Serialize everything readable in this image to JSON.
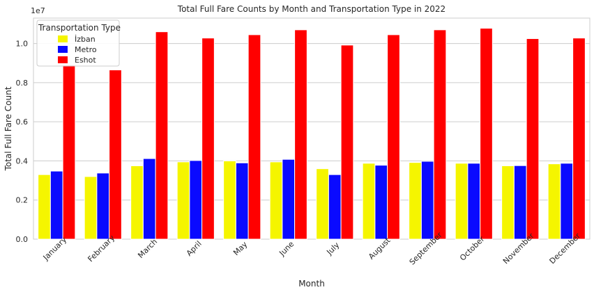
{
  "chart_data": {
    "type": "bar",
    "title": "Total Full Fare Counts by Month and Transportation Type in 2022",
    "xlabel": "Month",
    "ylabel": "Total Full Fare Count",
    "y_offset_label": "1e7",
    "y_scale": 10000000,
    "ylim": [
      0,
      1.13
    ],
    "yticks": [
      0.0,
      0.2,
      0.4,
      0.6,
      0.8,
      1.0
    ],
    "yticklabels": [
      "0.0",
      "0.2",
      "0.4",
      "0.6",
      "0.8",
      "1.0"
    ],
    "grid": "horizontal",
    "legend": {
      "title": "Transportation Type",
      "position": "top-left"
    },
    "categories": [
      "January",
      "February",
      "March",
      "April",
      "May",
      "June",
      "July",
      "August",
      "September",
      "October",
      "November",
      "December"
    ],
    "series": [
      {
        "name": "İzban",
        "color": "#f5f500",
        "values": [
          3300000,
          3200000,
          3750000,
          3950000,
          4000000,
          3950000,
          3600000,
          3880000,
          3920000,
          3880000,
          3750000,
          3850000
        ]
      },
      {
        "name": "Metro",
        "color": "#0a0aff",
        "values": [
          3480000,
          3380000,
          4120000,
          4020000,
          3900000,
          4080000,
          3300000,
          3780000,
          3980000,
          3880000,
          3760000,
          3880000
        ]
      },
      {
        "name": "Eshot",
        "color": "#ff0000",
        "values": [
          8900000,
          8650000,
          10600000,
          10280000,
          10450000,
          10700000,
          9920000,
          10450000,
          10700000,
          10780000,
          10250000,
          10280000
        ]
      }
    ]
  }
}
